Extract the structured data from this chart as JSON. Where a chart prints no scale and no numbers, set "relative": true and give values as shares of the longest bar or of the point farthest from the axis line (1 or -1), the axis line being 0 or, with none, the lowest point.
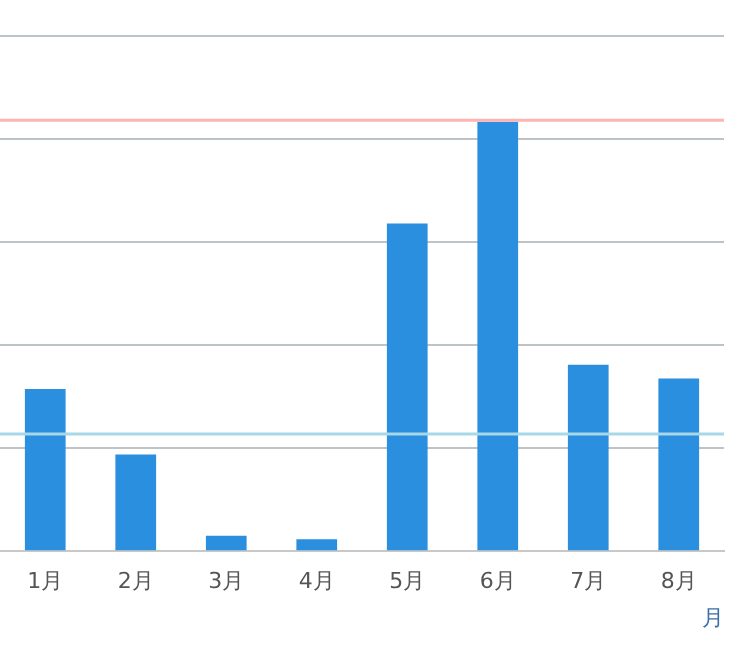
{
  "chart_data": {
    "type": "bar",
    "relative": true,
    "xlabel": "月",
    "categories": [
      "1月",
      "2月",
      "3月",
      "4月",
      "5月",
      "6月",
      "7月",
      "8月"
    ],
    "series": [
      {
        "color": "#2b8fe0",
        "values": [
          0.378,
          0.225,
          0.036,
          0.028,
          0.763,
          1,
          0.434,
          0.402
        ]
      }
    ],
    "ref_lines": [
      {
        "axis": "y",
        "value": 1.004,
        "color": "#ffb3b3"
      },
      {
        "axis": "y",
        "value": 0.273,
        "color": "#a8d8e8"
      }
    ],
    "grid": "y",
    "legend": false
  }
}
